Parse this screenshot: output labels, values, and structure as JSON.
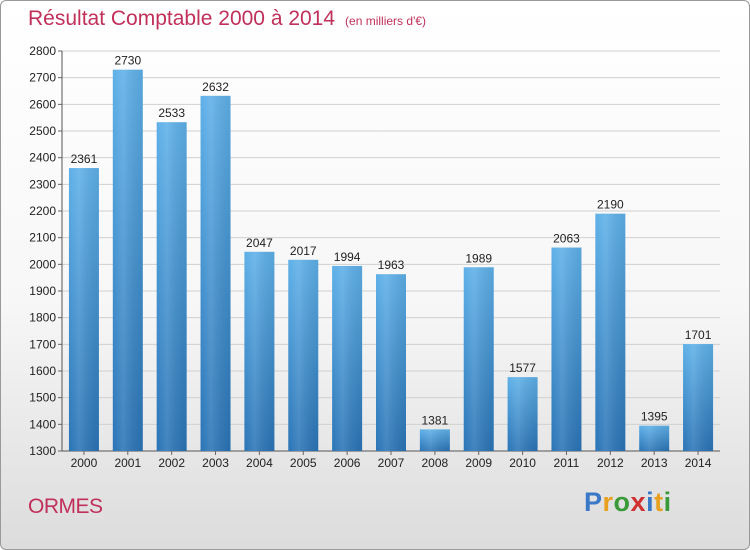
{
  "title": "Résultat Comptable 2000 à 2014",
  "unit_label": "(en milliers d'€)",
  "commune": "ORMES",
  "logo": {
    "letters": [
      "P",
      "r",
      "o",
      "x",
      "i",
      "t",
      "i"
    ],
    "colors": [
      "#3a78c8",
      "#e8a020",
      "#3a9a3a",
      "#d03030",
      "#3a78c8",
      "#e8a020",
      "#3a9a3a"
    ]
  },
  "colors": {
    "bar_top": "#5eb0e8",
    "bar_bottom": "#2a74b6",
    "title": "#c0305a"
  },
  "chart_data": {
    "type": "bar",
    "title": "Résultat Comptable 2000 à 2014",
    "subtitle": "(en milliers d'€)",
    "xlabel": "",
    "ylabel": "",
    "categories": [
      "2000",
      "2001",
      "2002",
      "2003",
      "2004",
      "2005",
      "2006",
      "2007",
      "2008",
      "2009",
      "2010",
      "2011",
      "2012",
      "2013",
      "2014"
    ],
    "values": [
      2361,
      2730,
      2533,
      2632,
      2047,
      2017,
      1994,
      1963,
      1381,
      1989,
      1577,
      2063,
      2190,
      1395,
      1701
    ],
    "ylim": [
      1300,
      2800
    ],
    "yticks": [
      1300,
      1400,
      1500,
      1600,
      1700,
      1800,
      1900,
      2000,
      2100,
      2200,
      2300,
      2400,
      2500,
      2600,
      2700,
      2800
    ],
    "grid": true
  }
}
